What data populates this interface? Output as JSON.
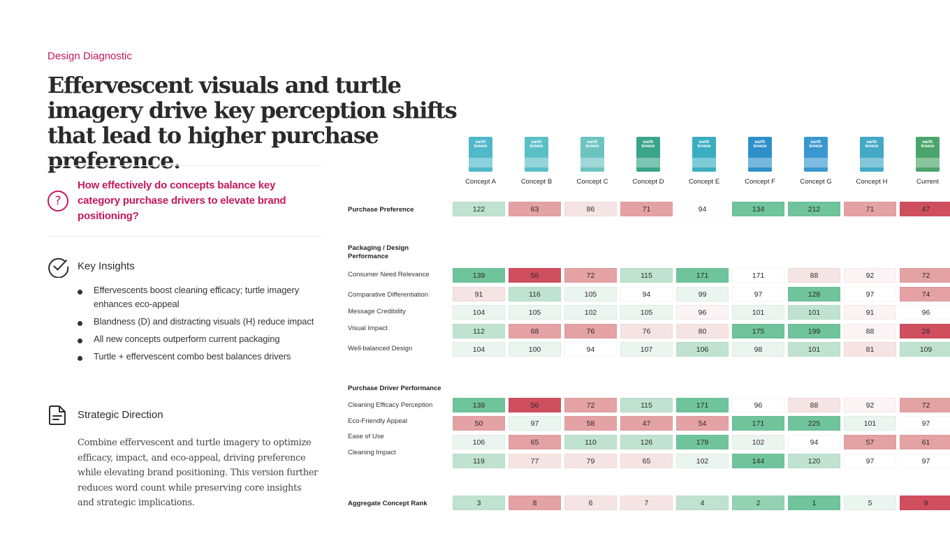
{
  "eyebrow": "Design Diagnostic",
  "headline": "Effervescent visuals and turtle imagery drive key perception shifts that lead to higher purchase preference.",
  "question": {
    "icon": "question-circle-icon",
    "text": "How effectively do concepts balance key category purchase drivers to elevate brand positioning?"
  },
  "key_insights": {
    "icon": "check-circle-icon",
    "title": "Key Insights",
    "items": [
      "Effervescents boost cleaning efficacy; turtle imagery enhances eco-appeal",
      "Blandness (D) and distracting visuals (H) reduce impact",
      "All new concepts outperform current packaging",
      "Turtle + effervescent combo best balances drivers"
    ]
  },
  "strategic_direction": {
    "icon": "document-icon",
    "title": "Strategic Direction",
    "body": "Combine effervescent and turtle imagery to optimize efficacy, impact, and eco-appeal, driving preference while elevating brand positioning. This version further reduces word count while preserving core insights and strategic implications."
  },
  "colors": {
    "accent": "#c2185b",
    "strong_green": "#6fc49c",
    "mid_green": "#93d3b3",
    "light_green": "#bfe3d0",
    "faint_green": "#eaf5ef",
    "neutral": "#ffffff",
    "faint_red": "#f6e3e4",
    "light_red": "#f1dcdd",
    "mid_red": "#e4a2a5",
    "strong_red": "#d04f5f"
  },
  "chart_data": {
    "type": "table",
    "columns": [
      {
        "label": "Concept A",
        "brand_text": "earth breeze",
        "pack_color": "#4fb8c9"
      },
      {
        "label": "Concept B",
        "brand_text": "earth breeze",
        "pack_color": "#5bbfc7"
      },
      {
        "label": "Concept C",
        "brand_text": "earth breeze",
        "pack_color": "#6cc4c0"
      },
      {
        "label": "Concept D",
        "brand_text": "earth breeze",
        "pack_color": "#3aa58a"
      },
      {
        "label": "Concept E",
        "brand_text": "earth breeze",
        "pack_color": "#3aaec0"
      },
      {
        "label": "Concept F",
        "brand_text": "earth breeze",
        "pack_color": "#2f8fc9"
      },
      {
        "label": "Concept G",
        "brand_text": "earth breeze",
        "pack_color": "#3a97cf"
      },
      {
        "label": "Concept H",
        "brand_text": "earth breeze",
        "pack_color": "#42a9c6"
      },
      {
        "label": "Current",
        "brand_text": "earth breeze",
        "pack_color": "#4aa56a"
      }
    ],
    "sections": [
      {
        "title": "",
        "rows": [
          {
            "label": "Purchase Preference",
            "bold": true,
            "values": [
              122,
              63,
              86,
              71,
              94,
              134,
              212,
              71,
              47
            ],
            "tones": [
              "lg",
              "mr",
              "fr",
              "mr",
              "n",
              "sg",
              "sg",
              "mr",
              "sr"
            ]
          }
        ]
      },
      {
        "title": "Packaging / Design Performance",
        "rows": [
          {
            "label": "Consumer Need Relevance",
            "values": [
              139,
              56,
              72,
              115,
              171,
              171,
              88,
              92,
              72
            ],
            "tones": [
              "sg",
              "sr",
              "mr",
              "lg",
              "sg",
              "n",
              "fr",
              "fr2",
              "mr"
            ]
          },
          {
            "label": "Comparative Differentiation",
            "values": [
              91,
              116,
              105,
              94,
              99,
              97,
              128,
              97,
              74
            ],
            "tones": [
              "fr",
              "lg",
              "fg",
              "n",
              "fg",
              "n",
              "sg",
              "n",
              "mr"
            ]
          },
          {
            "label": "Message Credibility",
            "values": [
              104,
              105,
              102,
              105,
              96,
              101,
              101,
              91,
              96
            ],
            "tones": [
              "fg",
              "fg",
              "fg",
              "fg",
              "fr2",
              "fg",
              "lg",
              "fr2",
              "n"
            ]
          },
          {
            "label": "Visual Impact",
            "values": [
              112,
              68,
              76,
              76,
              80,
              175,
              199,
              88,
              28
            ],
            "tones": [
              "lg",
              "mr",
              "mr",
              "fr",
              "fr",
              "sg",
              "sg",
              "fr2",
              "sr"
            ]
          },
          {
            "label": "Well-balanced Design",
            "values": [
              104,
              100,
              94,
              107,
              106,
              98,
              101,
              81,
              109
            ],
            "tones": [
              "fg",
              "fg",
              "n",
              "fg",
              "lg",
              "fg",
              "lg",
              "fr",
              "lg"
            ]
          }
        ]
      },
      {
        "title": "Purchase Driver Performance",
        "rows": [
          {
            "label": "Cleaning Efficacy Perception",
            "values": [
              139,
              56,
              72,
              115,
              171,
              96,
              88,
              92,
              72
            ],
            "tones": [
              "sg",
              "sr",
              "mr",
              "lg",
              "sg",
              "n",
              "fr",
              "fr2",
              "mr"
            ]
          },
          {
            "label": "Eco-Friendly Appeal",
            "values": [
              50,
              97,
              58,
              47,
              54,
              171,
              225,
              101,
              97
            ],
            "tones": [
              "mr",
              "fg",
              "mr",
              "mr",
              "mr",
              "sg",
              "sg",
              "fg",
              "n"
            ]
          },
          {
            "label": "Ease of Use",
            "values": [
              106,
              65,
              110,
              126,
              179,
              102,
              94,
              57,
              61
            ],
            "tones": [
              "fg",
              "mr",
              "lg",
              "lg",
              "sg",
              "fg",
              "n",
              "mr",
              "mr"
            ]
          },
          {
            "label": "Cleaning Impact",
            "values": [
              119,
              77,
              79,
              65,
              102,
              144,
              120,
              97,
              97
            ],
            "tones": [
              "lg",
              "fr",
              "fr",
              "fr",
              "fg",
              "sg",
              "lg",
              "n",
              "n"
            ]
          }
        ]
      },
      {
        "title": "",
        "rows": [
          {
            "label": "Aggregate Concept Rank",
            "bold": true,
            "values": [
              3,
              8,
              6,
              7,
              4,
              2,
              1,
              5,
              9
            ],
            "tones": [
              "lg",
              "mr",
              "fr",
              "fr",
              "lg",
              "mg",
              "sg",
              "fg",
              "sr"
            ]
          }
        ]
      }
    ]
  }
}
